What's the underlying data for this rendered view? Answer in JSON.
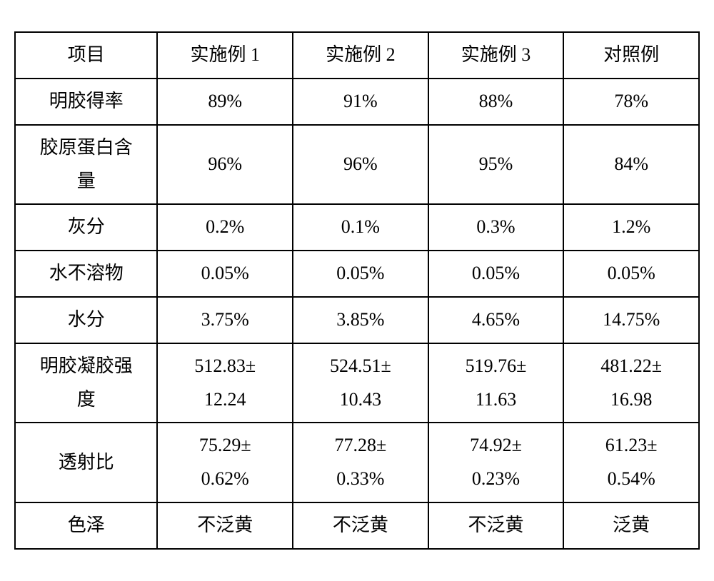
{
  "table": {
    "border_color": "#000000",
    "background_color": "#ffffff",
    "text_color": "#000000",
    "font_size": 26,
    "columns": [
      "项目",
      "实施例 1",
      "实施例 2",
      "实施例 3",
      "对照例"
    ],
    "rows": [
      {
        "label": "明胶得率",
        "values": [
          "89%",
          "91%",
          "88%",
          "78%"
        ],
        "height": "single"
      },
      {
        "label": "胶原蛋白含\n量",
        "values": [
          "96%",
          "96%",
          "95%",
          "84%"
        ],
        "height": "double"
      },
      {
        "label": "灰分",
        "values": [
          "0.2%",
          "0.1%",
          "0.3%",
          "1.2%"
        ],
        "height": "single"
      },
      {
        "label": "水不溶物",
        "values": [
          "0.05%",
          "0.05%",
          "0.05%",
          "0.05%"
        ],
        "height": "single"
      },
      {
        "label": "水分",
        "values": [
          "3.75%",
          "3.85%",
          "4.65%",
          "14.75%"
        ],
        "height": "single"
      },
      {
        "label": "明胶凝胶强\n度",
        "values": [
          "512.83±\n12.24",
          "524.51±\n10.43",
          "519.76±\n11.63",
          "481.22±\n16.98"
        ],
        "height": "double"
      },
      {
        "label": "透射比",
        "values": [
          "75.29±\n0.62%",
          "77.28±\n0.33%",
          "74.92±\n0.23%",
          "61.23±\n0.54%"
        ],
        "height": "double"
      },
      {
        "label": "色泽",
        "values": [
          "不泛黄",
          "不泛黄",
          "不泛黄",
          "泛黄"
        ],
        "height": "single"
      }
    ]
  }
}
